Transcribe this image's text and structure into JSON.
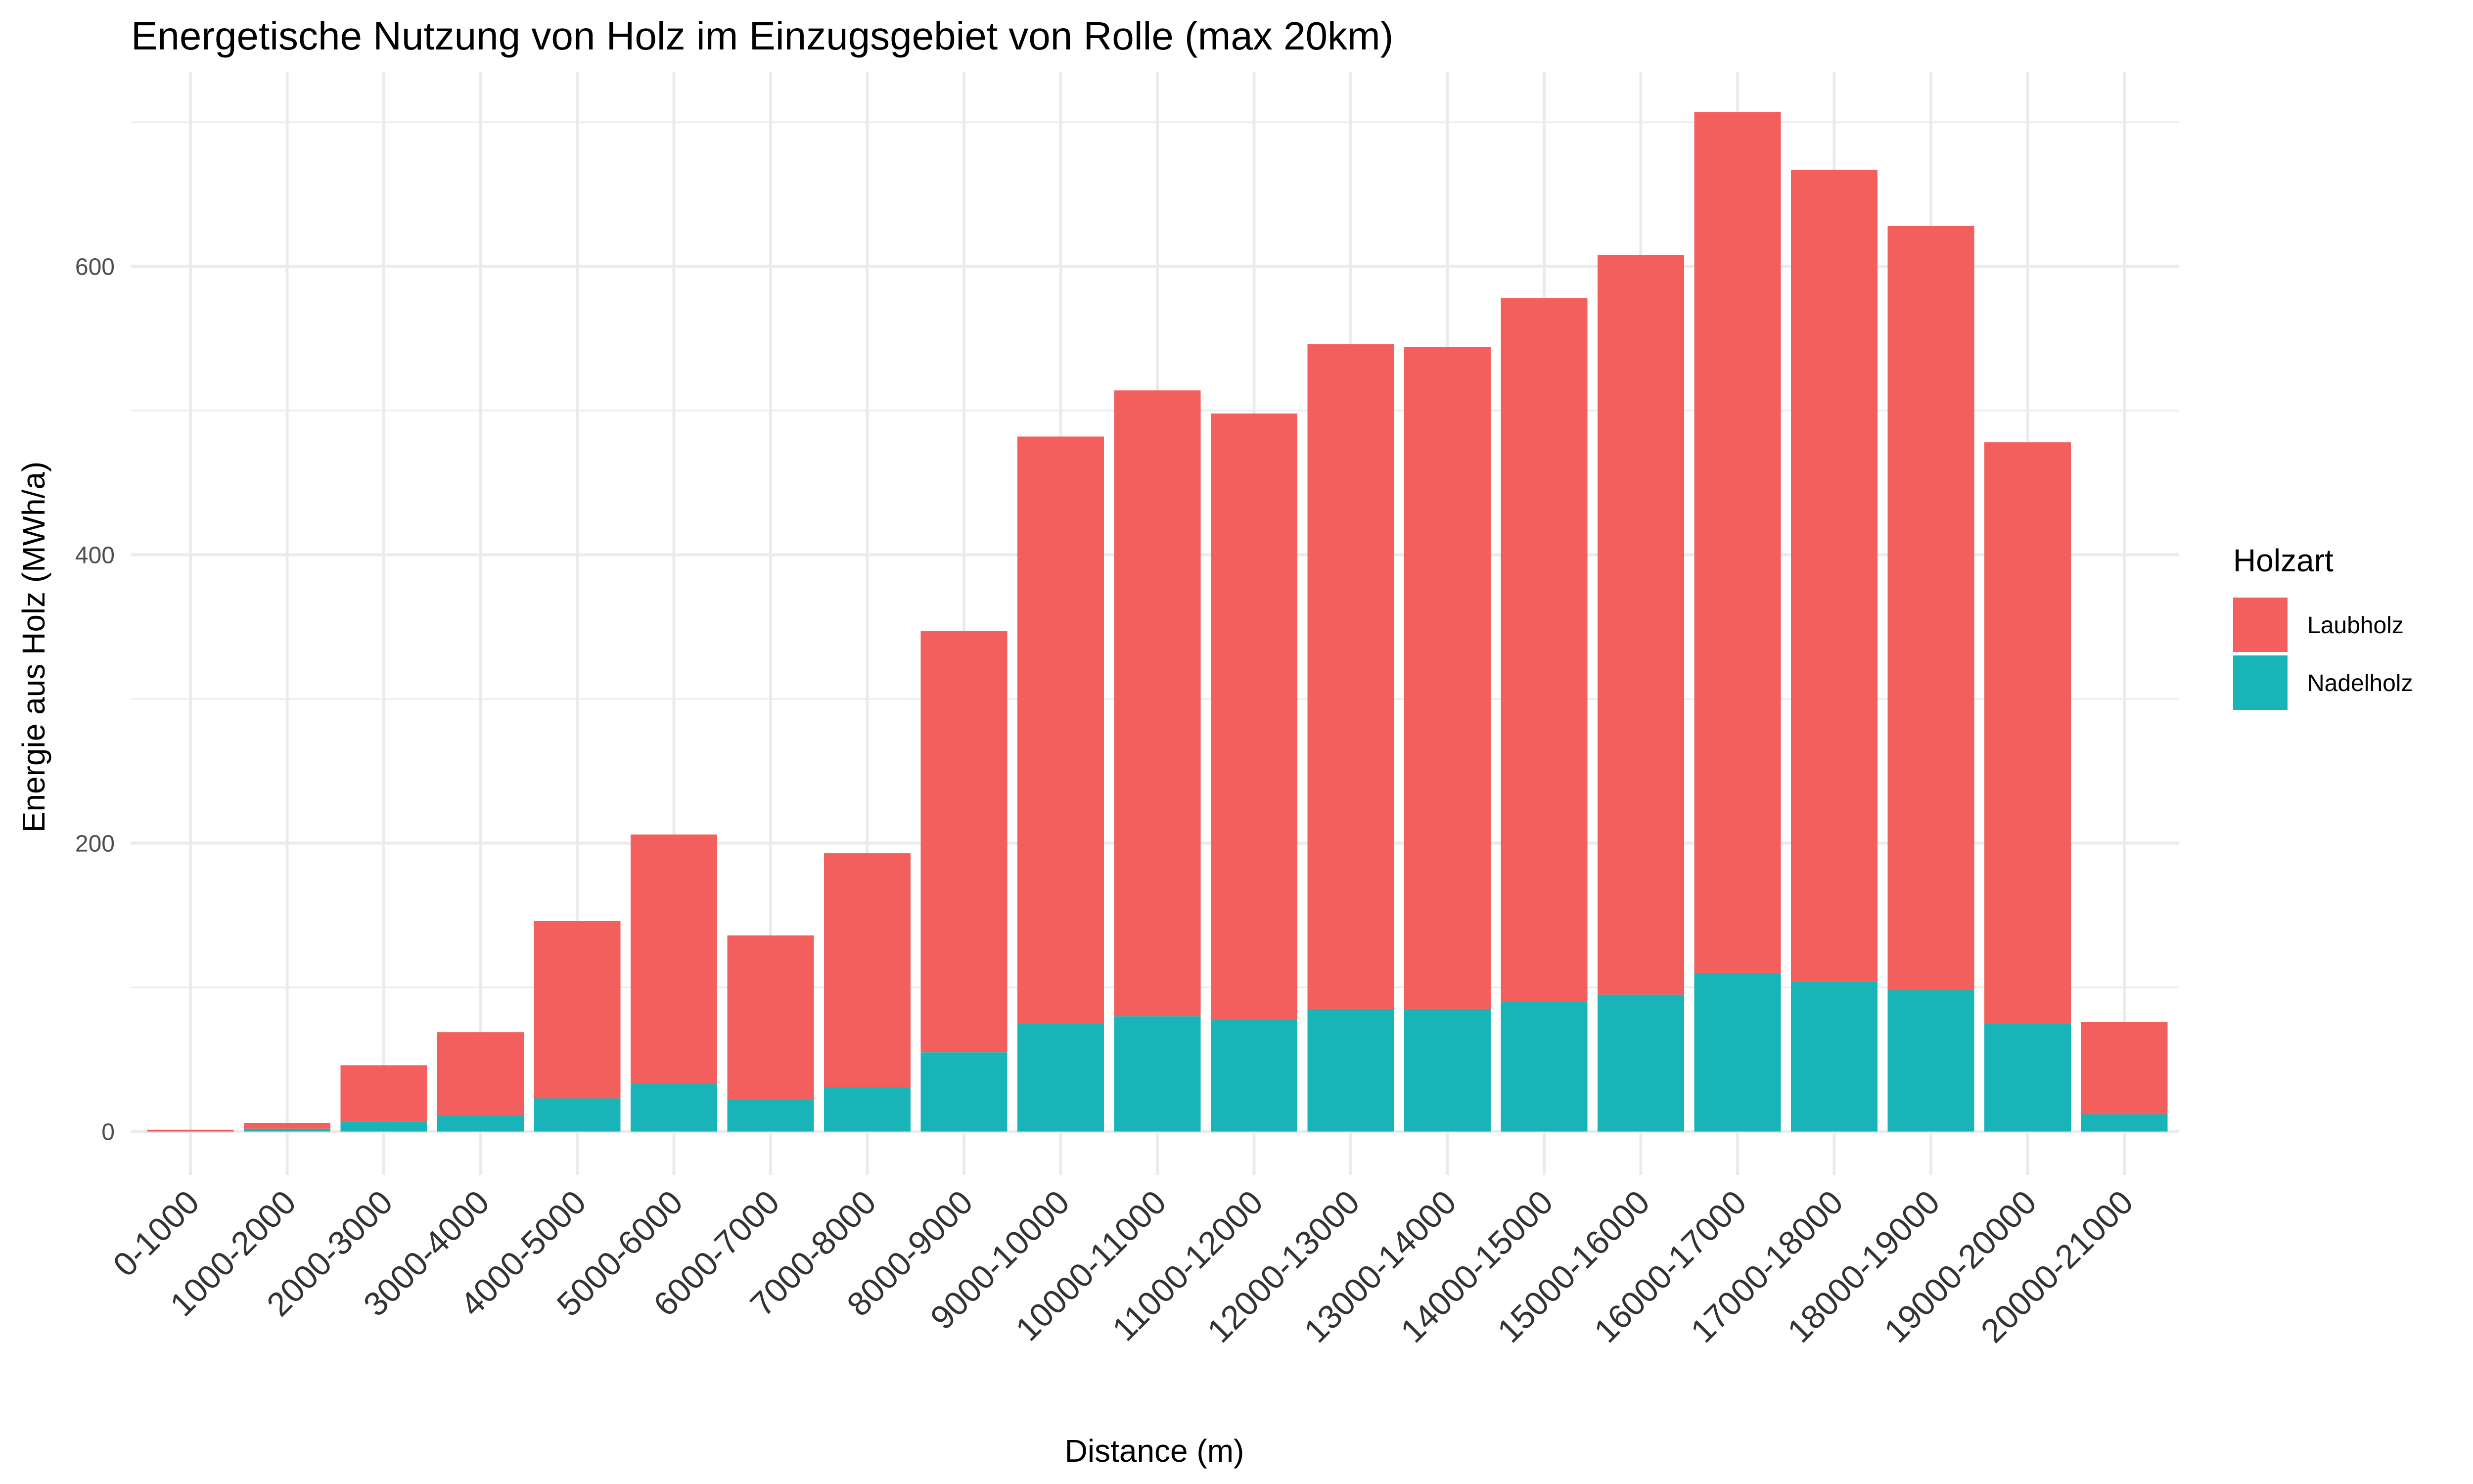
{
  "chart_data": {
    "type": "bar",
    "stacked": true,
    "title": "Energetische Nutzung von Holz im Einzugsgebiet von Rolle (max 20km)",
    "xlabel": "Distance (m)",
    "ylabel": "Energie aus Holz (MWh/a)",
    "ylim": [
      -30,
      735
    ],
    "yticks": [
      0,
      200,
      400,
      600
    ],
    "grid": true,
    "legend": {
      "title": "Holzart",
      "position": "right"
    },
    "categories": [
      "0-1000",
      "1000-2000",
      "2000-3000",
      "3000-4000",
      "4000-5000",
      "5000-6000",
      "6000-7000",
      "7000-8000",
      "8000-9000",
      "9000-10000",
      "10000-11000",
      "11000-12000",
      "12000-13000",
      "13000-14000",
      "14000-15000",
      "15000-16000",
      "16000-17000",
      "17000-18000",
      "18000-19000",
      "19000-20000",
      "20000-21000"
    ],
    "series": [
      {
        "name": "Nadelholz",
        "color": "#19B4B8",
        "values": [
          0.3,
          2,
          7,
          11,
          23,
          33,
          22,
          31,
          55,
          75,
          80,
          78,
          85,
          85,
          90,
          95,
          110,
          104,
          98,
          75,
          12
        ]
      },
      {
        "name": "Laubholz",
        "color": "#F25F5C",
        "values": [
          1,
          4,
          39,
          58,
          123,
          173,
          114,
          162,
          292,
          407,
          434,
          420,
          461,
          459,
          488,
          513,
          597,
          563,
          530,
          403,
          64
        ]
      }
    ]
  }
}
